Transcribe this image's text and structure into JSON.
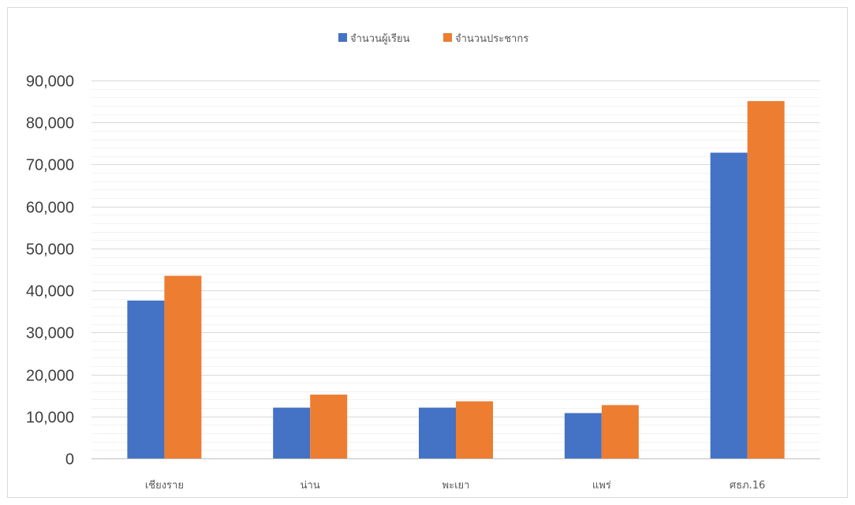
{
  "chart_data": {
    "type": "bar",
    "categories": [
      "เชียงราย",
      "น่าน",
      "พะเยา",
      "แพร่",
      "ศธภ.16"
    ],
    "series": [
      {
        "name": "จำนวนผู้เรียน",
        "color": "#4472c4",
        "values": [
          37600,
          12100,
          12100,
          10800,
          72800
        ]
      },
      {
        "name": "จำนวนประชากร",
        "color": "#ed7d31",
        "values": [
          43500,
          15200,
          13600,
          12700,
          85100
        ]
      }
    ],
    "yticks": [
      "0",
      "10,000",
      "20,000",
      "30,000",
      "40,000",
      "50,000",
      "60,000",
      "70,000",
      "80,000",
      "90,000"
    ],
    "ylim": [
      0,
      90000
    ],
    "major_step": 10000,
    "minor_step": 2000,
    "grid": true,
    "legend_position": "top"
  }
}
